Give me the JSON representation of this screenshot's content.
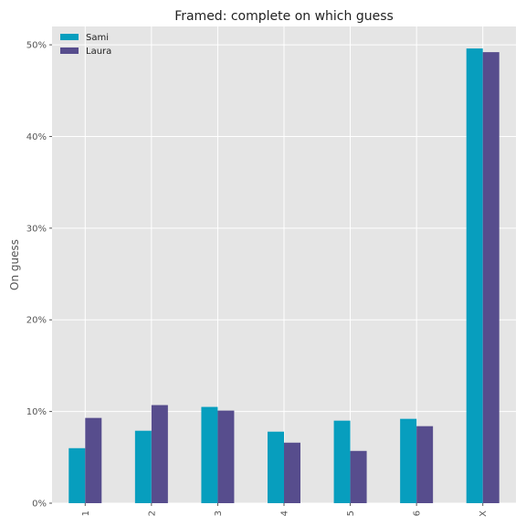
{
  "chart_data": {
    "type": "bar",
    "title": "Framed: complete on which guess",
    "xlabel": "",
    "ylabel": "On guess",
    "categories": [
      "1",
      "2",
      "3",
      "4",
      "5",
      "6",
      "X"
    ],
    "series": [
      {
        "name": "Sami",
        "values": [
          6.0,
          7.9,
          10.5,
          7.8,
          9.0,
          9.2,
          49.6
        ]
      },
      {
        "name": "Laura",
        "values": [
          9.3,
          10.7,
          10.1,
          6.6,
          5.7,
          8.4,
          49.2
        ]
      }
    ],
    "ylim": [
      0,
      52
    ],
    "yticks": [
      0,
      10,
      20,
      30,
      40,
      50
    ],
    "ytick_suffix": "%",
    "grid": true,
    "legend_position": "top-left",
    "colors": {
      "Sami": "#079ebe",
      "Laura": "#574d8d",
      "plot_background": "#e5e5e5",
      "grid": "#ffffff"
    }
  }
}
